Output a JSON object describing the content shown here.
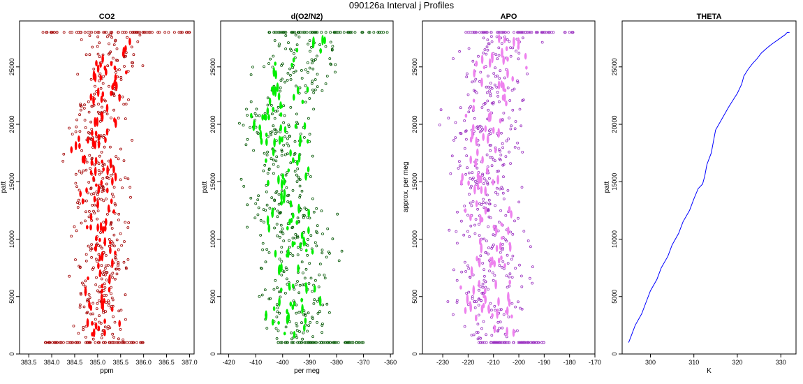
{
  "figure": {
    "title": "090126a   Interval j Profiles"
  },
  "colors": {
    "co2": "#ff0000",
    "o2n2": "#00ee00",
    "apo": "#ee82ee",
    "theta": "#0000ff",
    "frame": "#000000"
  },
  "chart_data": [
    {
      "id": "co2",
      "type": "scatter",
      "title": "CO2",
      "xlabel": "ppm",
      "ylabel": "patt",
      "xlim": [
        383.3,
        387.1
      ],
      "ylim": [
        0,
        29000
      ],
      "xticks": [
        383.5,
        384.0,
        384.5,
        385.0,
        385.5,
        386.0,
        386.5,
        387.0
      ],
      "xtick_labels": [
        "383.5",
        "384.0",
        "384.5",
        "385.0",
        "385.5",
        "386.0",
        "386.5",
        "387.0"
      ],
      "yticks": [
        0,
        5000,
        10000,
        15000,
        20000,
        25000
      ],
      "ytick_labels": [
        "0",
        "5000",
        "10000",
        "15000",
        "20000",
        "25000"
      ],
      "color_key": "co2",
      "profile": {
        "p": [
          1000,
          3000,
          6000,
          9000,
          12000,
          15000,
          18000,
          21000,
          24000,
          27000,
          28000
        ],
        "center": [
          385.15,
          385.05,
          385.1,
          385.15,
          385.05,
          385.1,
          384.9,
          385.1,
          385.25,
          385.35,
          385.3
        ],
        "spread": [
          0.28,
          0.4,
          0.35,
          0.32,
          0.38,
          0.4,
          0.42,
          0.4,
          0.38,
          0.4,
          0.45
        ]
      },
      "end_rows": [
        {
          "p": 1000,
          "x_min": 383.8,
          "x_max": 386.0
        },
        {
          "p": 28000,
          "x_min": 383.8,
          "x_max": 387.0
        }
      ]
    },
    {
      "id": "o2n2",
      "type": "scatter",
      "title": "d(O2/N2)",
      "xlabel": "per meg",
      "ylabel": "patt",
      "xlim": [
        -423,
        -359
      ],
      "ylim": [
        0,
        29000
      ],
      "xticks": [
        -420,
        -410,
        -400,
        -390,
        -380,
        -370,
        -360
      ],
      "xtick_labels": [
        "-420",
        "-410",
        "-400",
        "-390",
        "-380",
        "-370",
        "-360"
      ],
      "yticks": [
        0,
        5000,
        10000,
        15000,
        20000,
        25000
      ],
      "ytick_labels": [
        "0",
        "5000",
        "10000",
        "15000",
        "20000",
        "25000"
      ],
      "color_key": "o2n2",
      "profile": {
        "p": [
          1000,
          3000,
          6000,
          9000,
          12000,
          15000,
          18000,
          21000,
          24000,
          27000,
          28000
        ],
        "center": [
          -392,
          -397,
          -396,
          -394,
          -398,
          -401,
          -400,
          -403,
          -396,
          -392,
          -390
        ],
        "spread": [
          6,
          8,
          10,
          10,
          9,
          8,
          8,
          9,
          9,
          10,
          11
        ]
      },
      "end_rows": [
        {
          "p": 1000,
          "x_min": -402,
          "x_max": -370
        },
        {
          "p": 28000,
          "x_min": -407,
          "x_max": -361
        }
      ]
    },
    {
      "id": "apo",
      "type": "scatter",
      "title": "APO",
      "xlabel": "",
      "ylabel": "approx. per meg",
      "xlim": [
        -238,
        -170
      ],
      "ylim": [
        0,
        29000
      ],
      "xticks": [
        -230,
        -220,
        -210,
        -200,
        -190,
        -180,
        -170
      ],
      "xtick_labels": [
        "-230",
        "-220",
        "-210",
        "-200",
        "-190",
        "-180",
        "-170"
      ],
      "yticks": [
        0,
        5000,
        10000,
        15000,
        20000,
        25000
      ],
      "ytick_labels": [
        "0",
        "5000",
        "10000",
        "15000",
        "20000",
        "25000"
      ],
      "color_key": "apo",
      "profile": {
        "p": [
          1000,
          3000,
          6000,
          9000,
          12000,
          15000,
          18000,
          21000,
          24000,
          27000,
          28000
        ],
        "center": [
          -208,
          -212,
          -211,
          -210,
          -212,
          -214,
          -213,
          -214,
          -210,
          -206,
          -205
        ],
        "spread": [
          7,
          8,
          9,
          9,
          8,
          8,
          8,
          9,
          9,
          10,
          11
        ]
      },
      "end_rows": [
        {
          "p": 1000,
          "x_min": -217,
          "x_max": -190
        },
        {
          "p": 28000,
          "x_min": -222,
          "x_max": -178
        }
      ]
    },
    {
      "id": "theta",
      "type": "line",
      "title": "THETA",
      "xlabel": "K",
      "ylabel": "patt",
      "xlim": [
        293.5,
        333.5
      ],
      "ylim": [
        0,
        29000
      ],
      "xticks": [
        300,
        310,
        320,
        330
      ],
      "xtick_labels": [
        "300",
        "310",
        "320",
        "330"
      ],
      "yticks": [
        0,
        5000,
        10000,
        15000,
        20000,
        25000
      ],
      "ytick_labels": [
        "0",
        "5000",
        "10000",
        "15000",
        "20000",
        "25000"
      ],
      "color_key": "theta",
      "x": [
        295.0,
        295.5,
        296.5,
        298.0,
        299.0,
        300.0,
        301.5,
        302.5,
        304.0,
        305.0,
        306.5,
        307.5,
        309.0,
        310.0,
        311.0,
        312.0,
        312.5,
        313.0,
        314.0,
        314.5,
        315.0,
        316.5,
        318.0,
        319.0,
        320.0,
        321.0,
        321.5,
        322.5,
        323.5,
        324.5,
        325.5,
        327.0,
        328.0,
        329.5,
        331.0,
        331.5,
        332.0
      ],
      "y": [
        1000,
        1500,
        2500,
        3500,
        4500,
        5500,
        6500,
        7500,
        8500,
        9500,
        10500,
        11500,
        12500,
        13500,
        14400,
        14800,
        15500,
        16500,
        17500,
        18500,
        19500,
        20500,
        21500,
        22100,
        22700,
        23500,
        24200,
        24800,
        25300,
        25700,
        26200,
        26700,
        27000,
        27400,
        27800,
        28000,
        28000
      ]
    }
  ]
}
